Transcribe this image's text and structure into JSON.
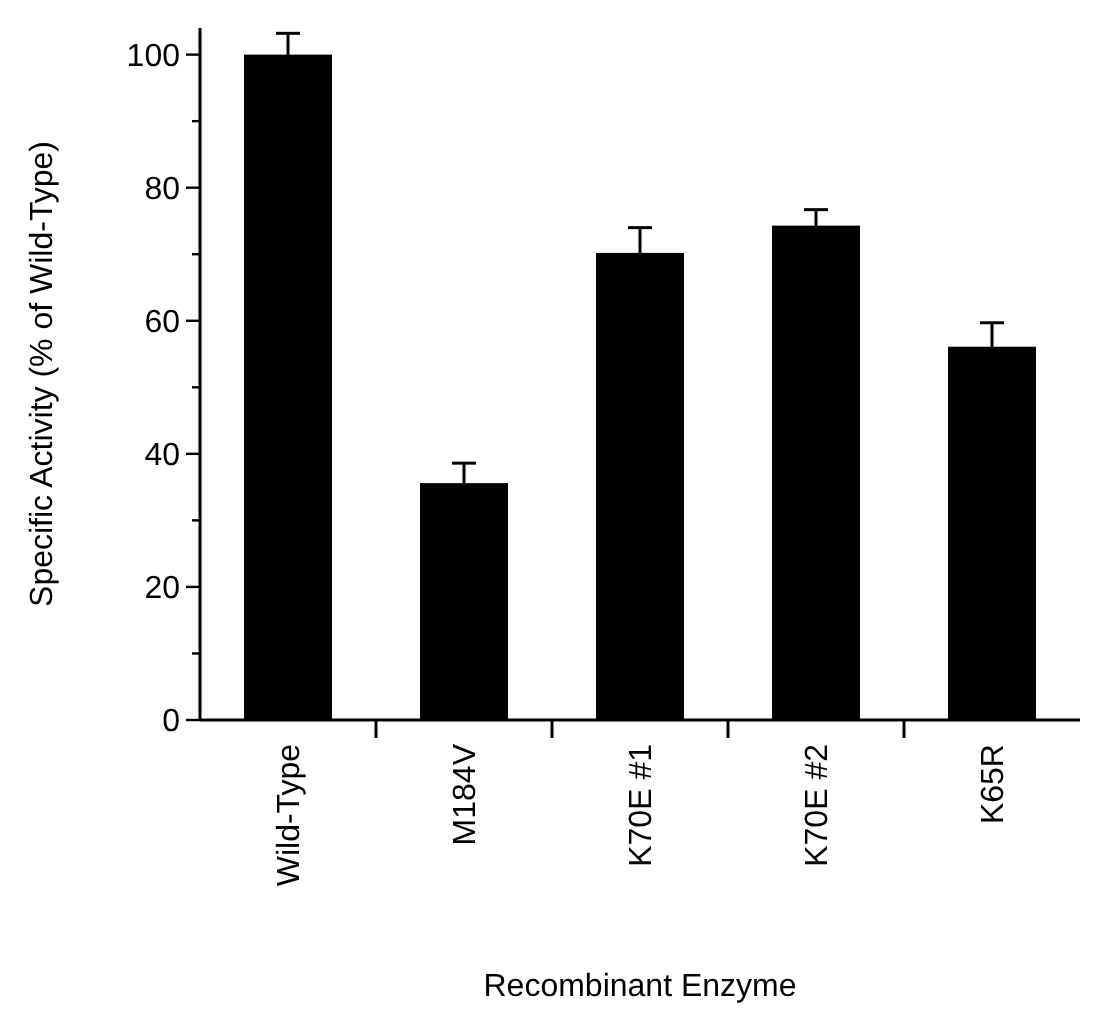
{
  "chart_data": {
    "type": "bar",
    "categories": [
      "Wild-Type",
      "M184V",
      "K70E #1",
      "K70E #2",
      "K65R"
    ],
    "values": [
      100,
      35.6,
      70.2,
      74.3,
      56.1
    ],
    "errors": [
      3.2,
      3,
      3.8,
      2.4,
      3.6
    ],
    "color": "#000000",
    "xlabel": "Recombinant Enzyme",
    "ylabel": "Specific Activity (% of Wild-Type)",
    "ylim": [
      0,
      104
    ],
    "yticks": [
      0,
      {
        "value": 10,
        "label": null
      },
      20,
      {
        "value": 30,
        "label": null
      },
      40,
      {
        "value": 50,
        "label": null
      },
      60,
      {
        "value": 70,
        "label": null
      },
      80,
      {
        "value": 90,
        "label": null
      },
      100
    ],
    "grid": false
  }
}
